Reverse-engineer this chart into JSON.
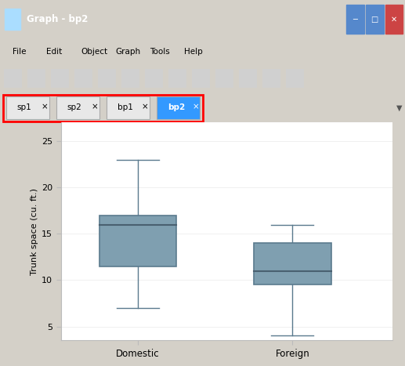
{
  "domestic": {
    "whislo": 7.0,
    "q1": 11.5,
    "med": 16.0,
    "q3": 17.0,
    "whishi": 23.0
  },
  "foreign": {
    "whislo": 4.0,
    "q1": 9.5,
    "med": 11.0,
    "q3": 14.0,
    "whishi": 16.0
  },
  "box_facecolor": "#7f9fb0",
  "box_edgecolor": "#5a7a8e",
  "median_color": "#4a6070",
  "whisker_color": "#5a7a8e",
  "cap_color": "#5a7a8e",
  "ylim": [
    3.5,
    27.0
  ],
  "yticks": [
    5,
    10,
    15,
    20,
    25
  ],
  "ylabel": "Trunk space (cu. ft.)",
  "categories": [
    "Domestic",
    "Foreign"
  ],
  "plot_bg": "#ffffff",
  "window_bg": "#d4d0c8",
  "titlebar_color": "#3c6eb4",
  "titlebar_text": "Graph - bp2",
  "menubar_bg": "#f0f0f0",
  "tab_labels": [
    "sp1",
    "sp2",
    "bp1",
    "bp2"
  ],
  "active_tab": "bp2",
  "active_tab_color": "#3399ff",
  "inactive_tab_color": "#e8e8e8",
  "tab_border_color": "red"
}
